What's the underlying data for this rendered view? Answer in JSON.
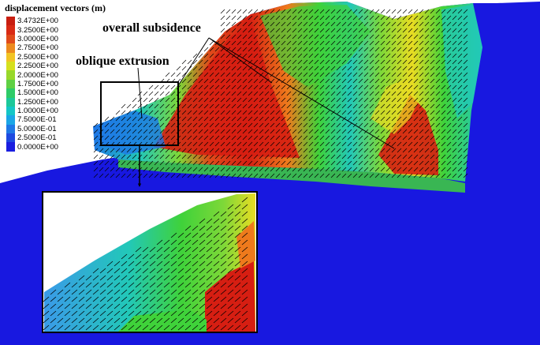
{
  "legend": {
    "title": "displacement vectors (m)",
    "entries": [
      {
        "label": "3.4732E+00",
        "color": "#c81e10"
      },
      {
        "label": "3.2500E+00",
        "color": "#d92a14"
      },
      {
        "label": "3.0000E+00",
        "color": "#e04a1a"
      },
      {
        "label": "2.7500E+00",
        "color": "#ec8a1e"
      },
      {
        "label": "2.5000E+00",
        "color": "#f2c424"
      },
      {
        "label": "2.2500E+00",
        "color": "#d6e01e"
      },
      {
        "label": "2.0000E+00",
        "color": "#98d82a"
      },
      {
        "label": "1.7500E+00",
        "color": "#5fd044"
      },
      {
        "label": "1.5000E+00",
        "color": "#2ecb68"
      },
      {
        "label": "1.2500E+00",
        "color": "#1cc89a"
      },
      {
        "label": "1.0000E+00",
        "color": "#14c6c6"
      },
      {
        "label": "7.5000E-01",
        "color": "#1aa6e6"
      },
      {
        "label": "5.0000E-01",
        "color": "#1e78e6"
      },
      {
        "label": "2.5000E-01",
        "color": "#1e4ae0"
      },
      {
        "label": "0.0000E+00",
        "color": "#1a1ee0"
      }
    ]
  },
  "annotations": {
    "subsidence": "overall subsidence",
    "extrusion": "oblique extrusion"
  },
  "colors": {
    "background_blue": "#1818e0",
    "red": "#d61e12",
    "orange": "#ee7a1c",
    "yellow": "#e9dc22",
    "green": "#3fd23a",
    "light_green": "#7ed838",
    "cyan": "#22c8b8",
    "light_blue": "#3a9ae8",
    "arrow": "#000000",
    "frame": "#000000"
  }
}
